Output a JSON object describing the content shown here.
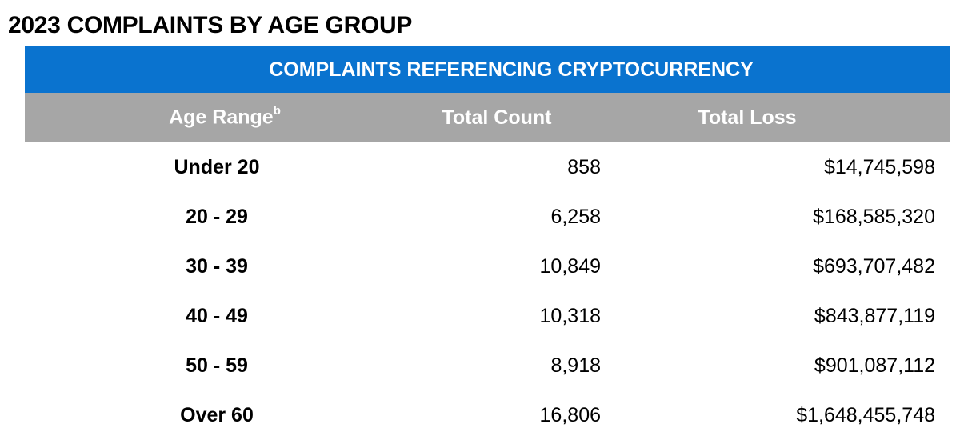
{
  "title": "2023 COMPLAINTS BY AGE GROUP",
  "banner": "COMPLAINTS REFERENCING CRYPTOCURRENCY",
  "colors": {
    "banner_bg": "#0a73cf",
    "header_bg": "#a6a6a6",
    "header_text": "#ffffff"
  },
  "table": {
    "headers": {
      "age_range": "Age Range",
      "age_range_footnote": "b",
      "total_count": "Total Count",
      "total_loss": "Total Loss"
    },
    "rows": [
      {
        "age": "Under 20",
        "count": "858",
        "loss": "$14,745,598"
      },
      {
        "age": "20 - 29",
        "count": "6,258",
        "loss": "$168,585,320"
      },
      {
        "age": "30 - 39",
        "count": "10,849",
        "loss": "$693,707,482"
      },
      {
        "age": "40 - 49",
        "count": "10,318",
        "loss": "$843,877,119"
      },
      {
        "age": "50 - 59",
        "count": "8,918",
        "loss": "$901,087,112"
      },
      {
        "age": "Over 60",
        "count": "16,806",
        "loss": "$1,648,455,748"
      }
    ]
  }
}
